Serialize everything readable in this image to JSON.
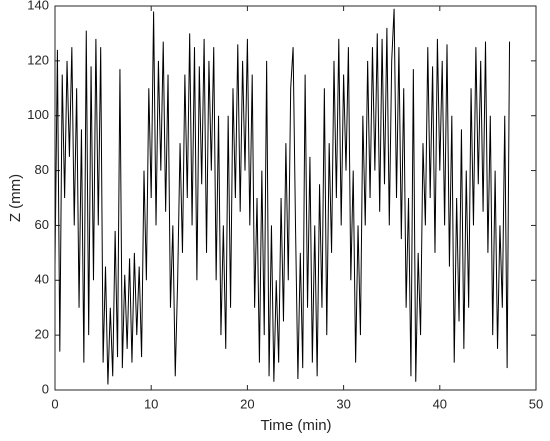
{
  "chart_data": {
    "type": "line",
    "xlabel": "Time (min)",
    "ylabel": "Z (mm)",
    "xlim": [
      0,
      50
    ],
    "xticks": [
      0,
      10,
      20,
      30,
      40,
      50
    ],
    "ylim": [
      0,
      140
    ],
    "yticks": [
      0,
      20,
      40,
      60,
      80,
      100,
      120,
      140
    ],
    "color": "#000000",
    "grid": false,
    "x": [
      0,
      0.25,
      0.5,
      0.75,
      1,
      1.25,
      1.5,
      1.75,
      2,
      2.25,
      2.5,
      2.75,
      3,
      3.25,
      3.5,
      3.75,
      4,
      4.25,
      4.5,
      4.75,
      5,
      5.25,
      5.5,
      5.75,
      6,
      6.25,
      6.5,
      6.75,
      7,
      7.25,
      7.5,
      7.75,
      8,
      8.25,
      8.5,
      8.75,
      9,
      9.25,
      9.5,
      9.75,
      10,
      10.25,
      10.5,
      10.75,
      11,
      11.25,
      11.5,
      11.75,
      12,
      12.25,
      12.5,
      12.75,
      13,
      13.25,
      13.5,
      13.75,
      14,
      14.25,
      14.5,
      14.75,
      15,
      15.25,
      15.5,
      15.75,
      16,
      16.25,
      16.5,
      16.75,
      17,
      17.25,
      17.5,
      17.75,
      18,
      18.25,
      18.5,
      18.75,
      19,
      19.25,
      19.5,
      19.75,
      20,
      20.25,
      20.5,
      20.75,
      21,
      21.25,
      21.5,
      21.75,
      22,
      22.25,
      22.5,
      22.75,
      23,
      23.25,
      23.5,
      23.75,
      24,
      24.25,
      24.5,
      24.75,
      25,
      25.25,
      25.5,
      25.75,
      26,
      26.25,
      26.5,
      26.75,
      27,
      27.25,
      27.5,
      27.75,
      28,
      28.25,
      28.5,
      28.75,
      29,
      29.25,
      29.5,
      29.75,
      30,
      30.25,
      30.5,
      30.75,
      31,
      31.25,
      31.5,
      31.75,
      32,
      32.25,
      32.5,
      32.75,
      33,
      33.25,
      33.5,
      33.75,
      34,
      34.25,
      34.5,
      34.75,
      35,
      35.25,
      35.5,
      35.75,
      36,
      36.25,
      36.5,
      36.75,
      37,
      37.25,
      37.5,
      37.75,
      38,
      38.25,
      38.5,
      38.75,
      39,
      39.25,
      39.5,
      39.75,
      40,
      40.25,
      40.5,
      40.75,
      41,
      41.25,
      41.5,
      41.75,
      42,
      42.25,
      42.5,
      42.75,
      43,
      43.25,
      43.5,
      43.75,
      44,
      44.25,
      44.5,
      44.75,
      45,
      45.25,
      45.5,
      45.75,
      46,
      46.25,
      46.5,
      46.75,
      47,
      47.25
    ],
    "values": [
      45,
      124,
      14,
      115,
      70,
      120,
      85,
      125,
      60,
      110,
      30,
      95,
      10,
      131,
      20,
      118,
      40,
      128,
      60,
      125,
      10,
      45,
      2,
      30,
      5,
      58,
      12,
      117,
      8,
      42,
      15,
      48,
      10,
      50,
      20,
      45,
      12,
      80,
      40,
      110,
      70,
      138,
      60,
      120,
      80,
      127,
      65,
      115,
      30,
      60,
      5,
      40,
      90,
      50,
      115,
      70,
      130,
      60,
      125,
      40,
      118,
      75,
      128,
      50,
      120,
      80,
      125,
      40,
      100,
      20,
      60,
      15,
      100,
      30,
      110,
      70,
      126,
      65,
      120,
      80,
      128,
      60,
      115,
      30,
      70,
      10,
      80,
      20,
      120,
      5,
      60,
      3,
      40,
      10,
      70,
      25,
      90,
      40,
      110,
      125,
      60,
      4,
      50,
      8,
      115,
      30,
      85,
      10,
      60,
      5,
      75,
      30,
      110,
      20,
      90,
      50,
      120,
      70,
      128,
      60,
      115,
      80,
      125,
      40,
      80,
      10,
      60,
      20,
      100,
      60,
      120,
      70,
      125,
      80,
      130,
      65,
      128,
      75,
      132,
      60,
      120,
      139,
      70,
      125,
      55,
      110,
      30,
      70,
      5,
      117,
      3,
      50,
      20,
      90,
      60,
      125,
      70,
      118,
      50,
      128,
      80,
      120,
      60,
      126,
      45,
      100,
      10,
      70,
      25,
      95,
      15,
      80,
      30,
      110,
      60,
      125,
      75,
      120,
      65,
      127,
      50,
      100,
      20,
      80,
      15,
      60,
      30,
      100,
      8,
      127
    ]
  }
}
